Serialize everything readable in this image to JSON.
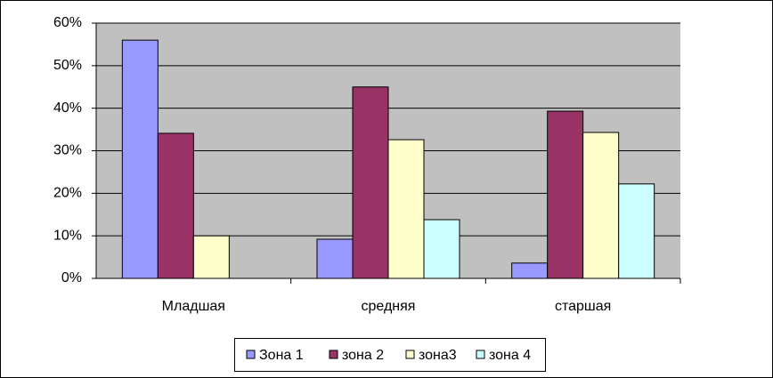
{
  "chart_data": {
    "type": "bar",
    "categories": [
      "Младшая",
      "средняя",
      "старшая"
    ],
    "series": [
      {
        "name": "Зона 1",
        "color": "#9999ff",
        "values": [
          56,
          9.2,
          3.6
        ]
      },
      {
        "name": "зона 2",
        "color": "#993366",
        "values": [
          34.1,
          45,
          39.3
        ]
      },
      {
        "name": "зона3",
        "color": "#ffffcc",
        "values": [
          10,
          32.6,
          34.3
        ]
      },
      {
        "name": "зона 4",
        "color": "#ccffff",
        "values": [
          0,
          13.8,
          22.2
        ]
      }
    ],
    "ylim": [
      0,
      60
    ],
    "yticks": [
      {
        "value": 0,
        "label": "0%"
      },
      {
        "value": 10,
        "label": "10%"
      },
      {
        "value": 20,
        "label": "20%"
      },
      {
        "value": 30,
        "label": "30%"
      },
      {
        "value": 40,
        "label": "40%"
      },
      {
        "value": 50,
        "label": "50%"
      },
      {
        "value": 60,
        "label": "60%"
      }
    ],
    "grid": true,
    "legend": "bottom"
  }
}
